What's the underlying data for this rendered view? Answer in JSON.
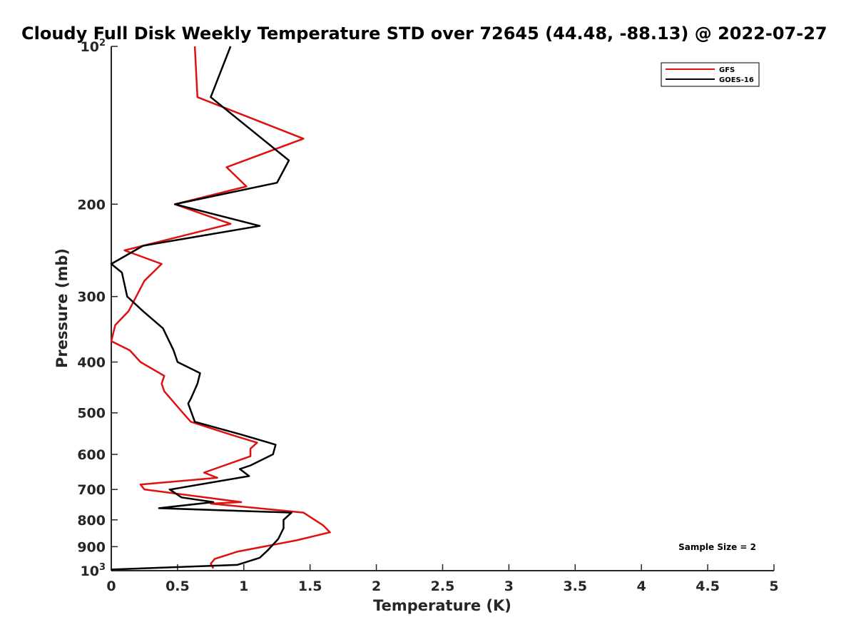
{
  "chart_data": {
    "type": "line",
    "title": "Cloudy Full Disk Weekly Temperature STD over 72645 (44.48, -88.13) @ 2022-07-27",
    "xlabel": "Temperature (K)",
    "ylabel": "Pressure (mb)",
    "xlim": [
      0,
      5
    ],
    "ylim": [
      100,
      1000
    ],
    "y_scale": "log",
    "y_reversed": true,
    "x_ticks": [
      0,
      0.5,
      1,
      1.5,
      2,
      2.5,
      3,
      3.5,
      4,
      4.5,
      5
    ],
    "x_tick_labels": [
      "0",
      "0.5",
      "1",
      "1.5",
      "2",
      "2.5",
      "3",
      "3.5",
      "4",
      "4.5",
      "5"
    ],
    "y_ticks": [
      100,
      200,
      300,
      400,
      500,
      600,
      700,
      800,
      900,
      1000
    ],
    "y_tick_labels": [
      {
        "base": "10",
        "exp": "2"
      },
      {
        "base": "200",
        "exp": ""
      },
      {
        "base": "300",
        "exp": ""
      },
      {
        "base": "400",
        "exp": ""
      },
      {
        "base": "500",
        "exp": ""
      },
      {
        "base": "600",
        "exp": ""
      },
      {
        "base": "700",
        "exp": ""
      },
      {
        "base": "800",
        "exp": ""
      },
      {
        "base": "900",
        "exp": ""
      },
      {
        "base": "10",
        "exp": "3"
      }
    ],
    "grid": false,
    "legend_position": "top-right",
    "annotation": "Sample Size = 2",
    "series": [
      {
        "name": "GFS",
        "color": "#dd1111",
        "points": [
          [
            0.63,
            100
          ],
          [
            0.65,
            125
          ],
          [
            1.45,
            150
          ],
          [
            0.87,
            170
          ],
          [
            1.02,
            185
          ],
          [
            0.48,
            200
          ],
          [
            0.9,
            218
          ],
          [
            0.1,
            245
          ],
          [
            0.38,
            260
          ],
          [
            0.25,
            280
          ],
          [
            0.13,
            320
          ],
          [
            0.03,
            340
          ],
          [
            0.0,
            365
          ],
          [
            0.14,
            380
          ],
          [
            0.22,
            400
          ],
          [
            0.4,
            425
          ],
          [
            0.38,
            440
          ],
          [
            0.4,
            455
          ],
          [
            0.57,
            510
          ],
          [
            0.6,
            520
          ],
          [
            0.9,
            550
          ],
          [
            1.1,
            570
          ],
          [
            1.05,
            585
          ],
          [
            1.05,
            605
          ],
          [
            0.7,
            650
          ],
          [
            0.8,
            665
          ],
          [
            0.22,
            685
          ],
          [
            0.25,
            700
          ],
          [
            0.98,
            740
          ],
          [
            0.75,
            745
          ],
          [
            1.45,
            775
          ],
          [
            1.6,
            820
          ],
          [
            1.65,
            845
          ],
          [
            1.4,
            875
          ],
          [
            0.95,
            920
          ],
          [
            0.78,
            950
          ],
          [
            0.75,
            970
          ],
          [
            0.77,
            990
          ]
        ]
      },
      {
        "name": "GOES-16",
        "color": "#000000",
        "points": [
          [
            0.9,
            100
          ],
          [
            0.75,
            125
          ],
          [
            1.34,
            165
          ],
          [
            1.25,
            182
          ],
          [
            0.48,
            200
          ],
          [
            1.12,
            220
          ],
          [
            0.24,
            240
          ],
          [
            0.0,
            260
          ],
          [
            0.08,
            270
          ],
          [
            0.12,
            300
          ],
          [
            0.24,
            320
          ],
          [
            0.39,
            345
          ],
          [
            0.47,
            380
          ],
          [
            0.5,
            400
          ],
          [
            0.67,
            420
          ],
          [
            0.65,
            440
          ],
          [
            0.6,
            470
          ],
          [
            0.58,
            480
          ],
          [
            0.63,
            520
          ],
          [
            0.98,
            550
          ],
          [
            1.24,
            575
          ],
          [
            1.22,
            600
          ],
          [
            1.05,
            630
          ],
          [
            0.97,
            640
          ],
          [
            1.04,
            660
          ],
          [
            0.45,
            700
          ],
          [
            0.44,
            700
          ],
          [
            0.53,
            725
          ],
          [
            0.77,
            740
          ],
          [
            0.36,
            760
          ],
          [
            1.36,
            775
          ],
          [
            1.3,
            800
          ],
          [
            1.3,
            830
          ],
          [
            1.26,
            870
          ],
          [
            1.18,
            915
          ],
          [
            1.12,
            945
          ],
          [
            0.95,
            975
          ],
          [
            0.0,
            995
          ]
        ]
      }
    ]
  }
}
